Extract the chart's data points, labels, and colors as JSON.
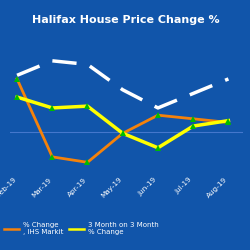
{
  "title": "Halifax House Price Change %",
  "background_color": "#1155aa",
  "title_color": "white",
  "x_labels": [
    "Feb-19",
    "Mar-19",
    "Apr-19",
    "May-19",
    "Jun-19",
    "Jul-19",
    "Aug-19"
  ],
  "x_values": [
    0,
    1,
    2,
    3,
    4,
    5,
    6
  ],
  "dashed_white": [
    6.0,
    6.8,
    6.6,
    5.2,
    4.2,
    5.0,
    5.8
  ],
  "orange_line": [
    5.8,
    1.5,
    1.2,
    2.8,
    3.8,
    3.6,
    3.4
  ],
  "yellow_line": [
    4.8,
    4.2,
    4.3,
    2.8,
    2.0,
    3.2,
    3.5
  ],
  "orange_color": "#f5820a",
  "yellow_color": "#ffff00",
  "white_dashed_color": "white",
  "marker_color": "#00bb00",
  "ref_line_color": "#4477cc",
  "tick_color": "white",
  "legend_text_color": "white",
  "legend_left": "% Change\n, IHS Markit",
  "legend_right": "3 Month on 3 Month\n% Change"
}
